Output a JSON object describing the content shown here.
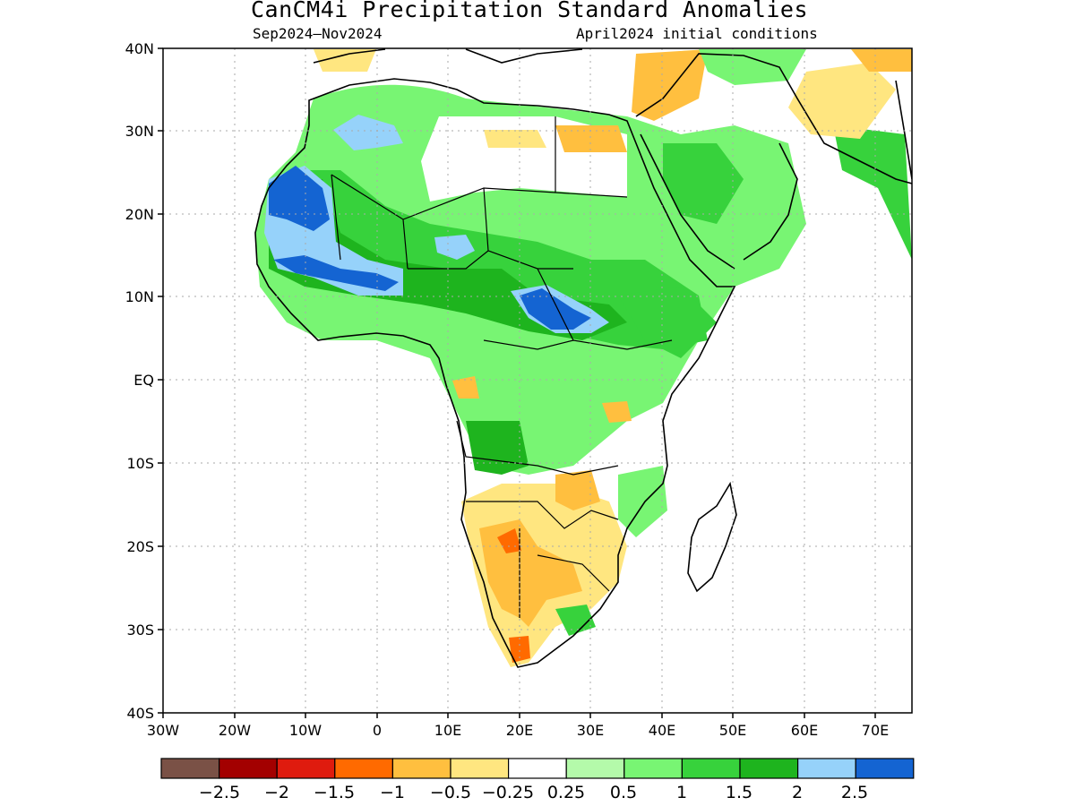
{
  "title": "CanCM4i Precipitation Standard Anomalies",
  "subtitle_left": "Sep2024–Nov2024",
  "subtitle_right": "April2024 initial conditions",
  "lat_labels": [
    "40N",
    "30N",
    "20N",
    "10N",
    "EQ",
    "10S",
    "20S",
    "30S",
    "40S"
  ],
  "lon_labels": [
    "30W",
    "20W",
    "10W",
    "0",
    "10E",
    "20E",
    "30E",
    "40E",
    "50E",
    "60E",
    "70E"
  ],
  "colorbar": {
    "colors": [
      "#7a5146",
      "#a30000",
      "#df1b0e",
      "#ff6a00",
      "#ffbf3f",
      "#ffe680",
      "#ffffff",
      "#b4faaa",
      "#78f573",
      "#37d23c",
      "#1eb41e",
      "#96d2fa",
      "#1464d2"
    ],
    "labels": [
      "−2.5",
      "−2",
      "−1.5",
      "−1",
      "−0.5",
      "−0.25",
      "0.25",
      "0.5",
      "1",
      "1.5",
      "2",
      "2.5"
    ]
  },
  "palette": {
    "green_light": "#b4faaa",
    "green": "#78f573",
    "green_mid": "#37d23c",
    "green_dark": "#1eb41e",
    "blue_light": "#96d2fa",
    "blue": "#1464d2",
    "yellow": "#ffe680",
    "orange_light": "#ffbf3f",
    "orange": "#ff6a00"
  }
}
